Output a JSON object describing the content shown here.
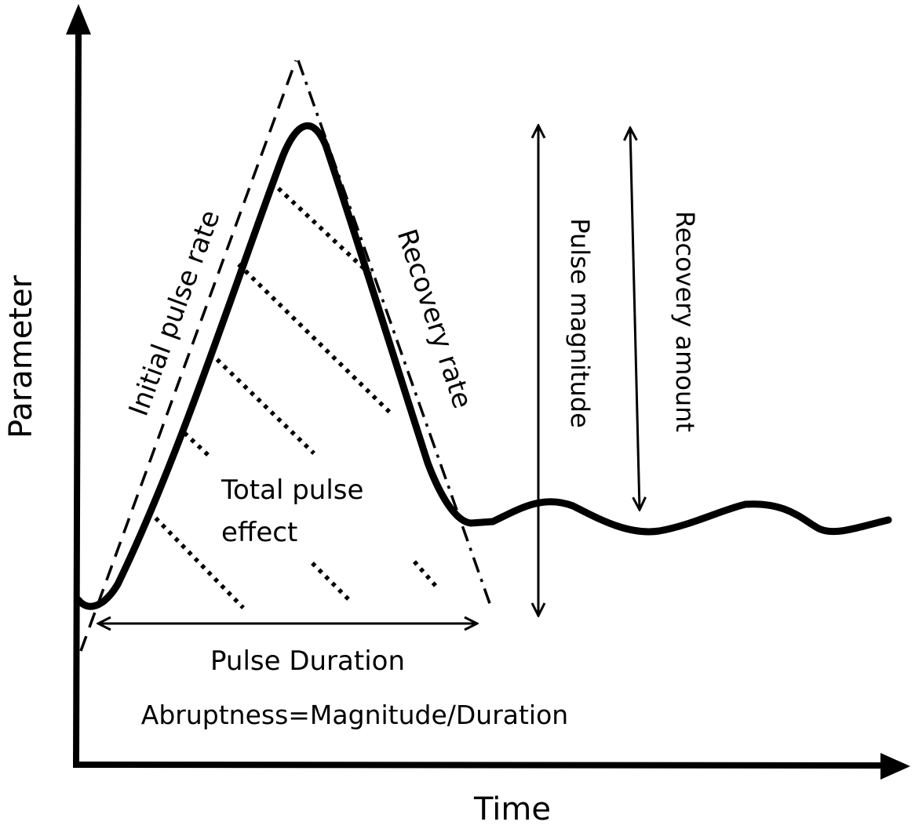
{
  "labels": {
    "y_axis": "Parameter",
    "x_axis": "Time",
    "initial_pulse_rate": "Initial pulse rate",
    "recovery_rate": "Recovery rate",
    "pulse_magnitude": "Pulse magnitude",
    "recovery_amount": "Recovery amount",
    "total_pulse_effect_line1": "Total pulse",
    "total_pulse_effect_line2": "effect",
    "pulse_duration": "Pulse Duration",
    "abruptness_formula": "Abruptness=Magnitude/Duration"
  },
  "colors": {
    "stroke": "#000000",
    "background": "#ffffff"
  }
}
